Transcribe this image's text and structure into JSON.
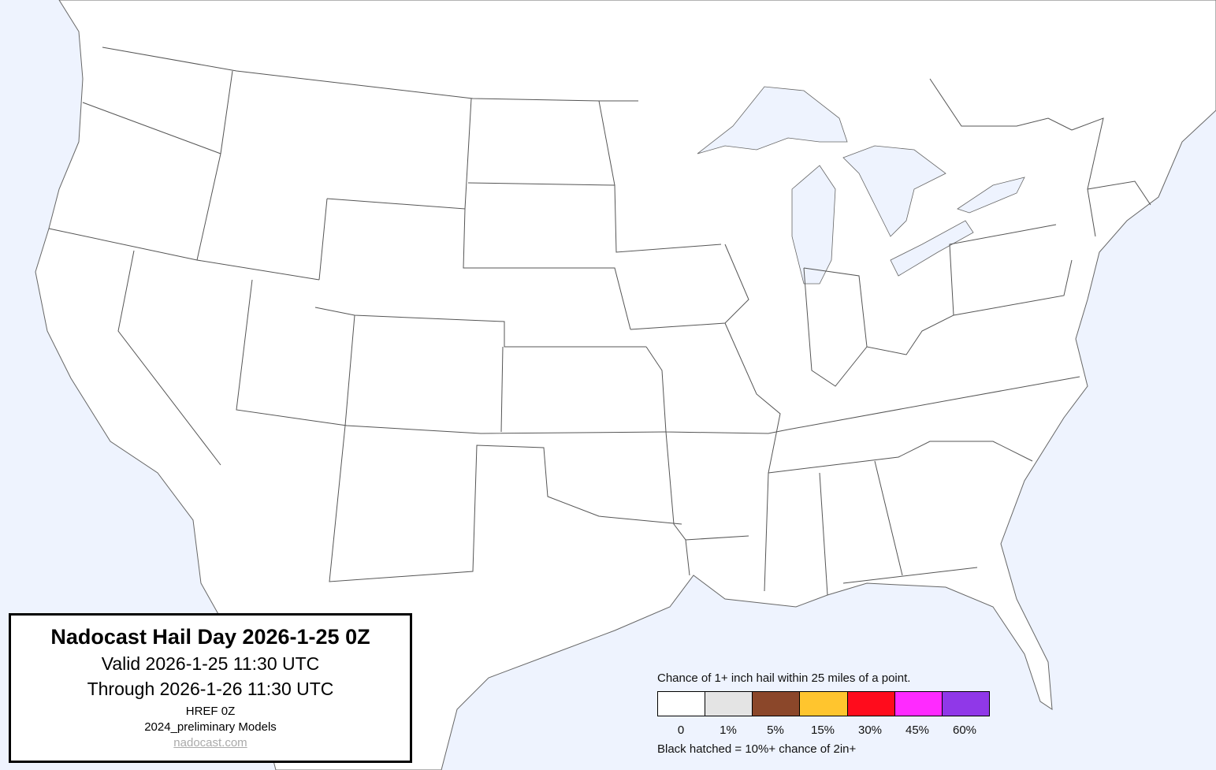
{
  "title_box": {
    "title": "Nadocast Hail Day 2026-1-25 0Z",
    "valid": "Valid 2026-1-25 11:30 UTC",
    "through": "Through 2026-1-26 11:30 UTC",
    "model": "HREF 0Z",
    "models": "2024_preliminary Models",
    "link": "nadocast.com"
  },
  "legend": {
    "caption": "Chance of 1+ inch hail within 25 miles of a point.",
    "bins": [
      {
        "label": "0",
        "color": "#ffffff"
      },
      {
        "label": "1%",
        "color": "#e4e4e4"
      },
      {
        "label": "5%",
        "color": "#8b472a"
      },
      {
        "label": "15%",
        "color": "#ffc52e"
      },
      {
        "label": "30%",
        "color": "#ff0c1c"
      },
      {
        "label": "45%",
        "color": "#ff2aff"
      },
      {
        "label": "60%",
        "color": "#9038e8"
      }
    ],
    "note": "Black hatched = 10%+ chance of 2in+"
  },
  "colors": {
    "water": "#eef3fe",
    "land": "#ffffff",
    "border": "#555555"
  }
}
